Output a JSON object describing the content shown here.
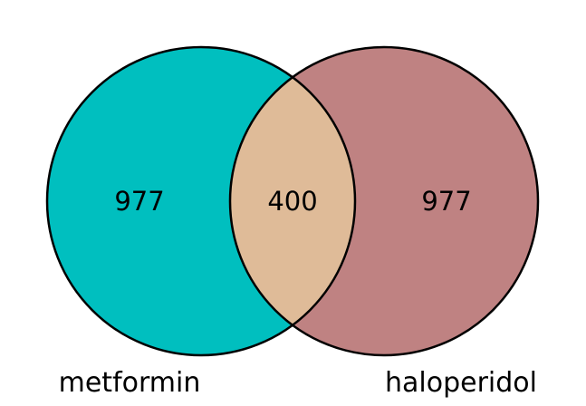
{
  "diagram": {
    "type": "venn",
    "sets": [
      {
        "name": "metformin",
        "only_count": "977",
        "color": "#00BFBF"
      },
      {
        "name": "haloperidol",
        "only_count": "977",
        "color": "#BF8282"
      }
    ],
    "intersection": {
      "count": "400",
      "color": "#DFBB98"
    },
    "outline_color": "#000000"
  }
}
